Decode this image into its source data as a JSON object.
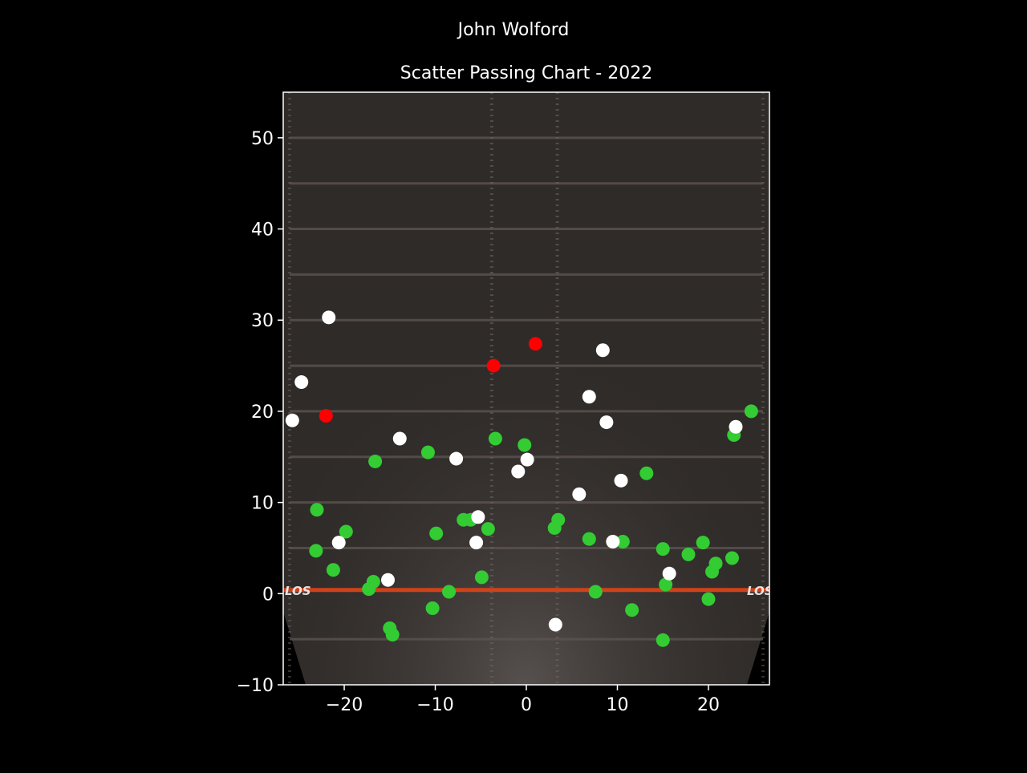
{
  "suptitle": "John Wolford",
  "colors": {
    "background": "#000000",
    "field_turf": "#2f2b29",
    "yard_line": "#5b5350",
    "los_line": "#d0421a",
    "completion": "#33cc33",
    "incompletion": "#ffffff",
    "interception": "#ff0000",
    "axis": "#ffffff"
  },
  "chart_data": {
    "type": "scatter",
    "title": "Scatter Passing Chart - 2022",
    "xlabel": "",
    "ylabel": "",
    "xlim": [
      -26.7,
      26.7
    ],
    "ylim": [
      -10,
      55
    ],
    "x_ticks": [
      -20,
      -10,
      0,
      10,
      20
    ],
    "y_ticks": [
      -10,
      0,
      10,
      20,
      30,
      40,
      50
    ],
    "x_tick_labels": [
      "−20",
      "−10",
      "0",
      "10",
      "20"
    ],
    "y_tick_labels": [
      "−10",
      "0",
      "10",
      "20",
      "30",
      "40",
      "50"
    ],
    "field_labels": [
      "LOS",
      "LOS"
    ],
    "grid": false,
    "legend": "none",
    "series": [
      {
        "color": "#33cc33",
        "points": [
          [
            -23,
            9.2
          ],
          [
            -23.1,
            4.7
          ],
          [
            -19.8,
            6.8
          ],
          [
            -21.2,
            2.6
          ],
          [
            -16.6,
            14.5
          ],
          [
            -16.8,
            1.3
          ],
          [
            -17.3,
            0.5
          ],
          [
            -15,
            -3.8
          ],
          [
            -14.7,
            -4.5
          ],
          [
            -10.8,
            15.5
          ],
          [
            -9.9,
            6.6
          ],
          [
            -10.3,
            -1.6
          ],
          [
            -8.5,
            0.2
          ],
          [
            -6.9,
            8.1
          ],
          [
            -6.1,
            8.1
          ],
          [
            -4.2,
            7.1
          ],
          [
            -4.9,
            1.8
          ],
          [
            -3.4,
            17.0
          ],
          [
            -0.2,
            16.3
          ],
          [
            3.1,
            7.2
          ],
          [
            3.5,
            8.1
          ],
          [
            6.9,
            6.0
          ],
          [
            7.6,
            0.2
          ],
          [
            10.6,
            5.7
          ],
          [
            11.6,
            -1.8
          ],
          [
            13.2,
            13.2
          ],
          [
            15.0,
            4.9
          ],
          [
            15.0,
            -5.1
          ],
          [
            15.3,
            1.0
          ],
          [
            17.8,
            4.3
          ],
          [
            19.4,
            5.6
          ],
          [
            20.0,
            -0.6
          ],
          [
            20.4,
            2.4
          ],
          [
            20.8,
            3.3
          ],
          [
            22.6,
            3.9
          ],
          [
            22.8,
            17.4
          ],
          [
            24.7,
            20.0
          ]
        ]
      },
      {
        "color": "#ffffff",
        "points": [
          [
            -25.7,
            19.0
          ],
          [
            -24.7,
            23.2
          ],
          [
            -21.7,
            30.3
          ],
          [
            -20.6,
            5.6
          ],
          [
            -15.2,
            1.5
          ],
          [
            -13.9,
            17.0
          ],
          [
            -7.7,
            14.8
          ],
          [
            -5.5,
            5.6
          ],
          [
            -5.3,
            8.4
          ],
          [
            -0.9,
            13.4
          ],
          [
            0.1,
            14.7
          ],
          [
            3.2,
            -3.4
          ],
          [
            5.8,
            10.9
          ],
          [
            6.9,
            21.6
          ],
          [
            8.4,
            26.7
          ],
          [
            8.8,
            18.8
          ],
          [
            9.5,
            5.7
          ],
          [
            10.4,
            12.4
          ],
          [
            15.7,
            2.2
          ],
          [
            23.0,
            18.3
          ]
        ]
      },
      {
        "color": "#ff0000",
        "points": [
          [
            -22.0,
            19.5
          ],
          [
            -3.6,
            25.0
          ],
          [
            1.0,
            27.4
          ]
        ]
      }
    ]
  }
}
